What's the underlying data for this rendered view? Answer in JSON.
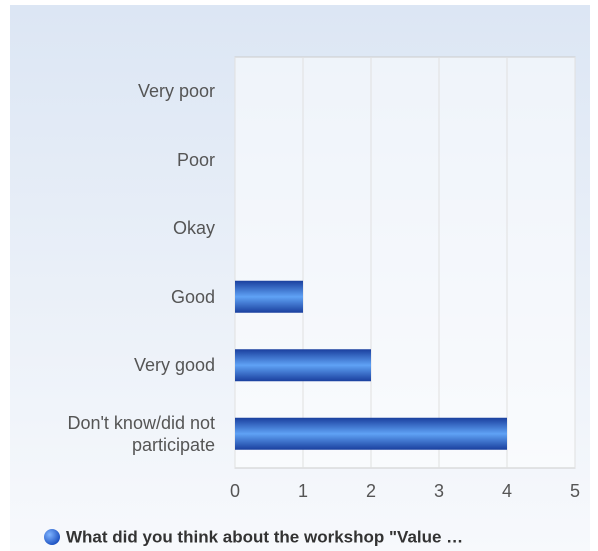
{
  "chart_data": {
    "type": "bar",
    "orientation": "horizontal",
    "categories": [
      "Very poor",
      "Poor",
      "Okay",
      "Good",
      "Very good",
      "Don't know/did not participate"
    ],
    "series": [
      {
        "name": "What did you think about the workshop \"Value …",
        "color": "#3a78e0",
        "values": [
          0,
          0,
          0,
          1,
          2,
          4
        ]
      }
    ],
    "xlim": [
      0,
      5
    ],
    "xticks": [
      0,
      1,
      2,
      3,
      4,
      5
    ],
    "grid": true,
    "legend": "bottom"
  }
}
